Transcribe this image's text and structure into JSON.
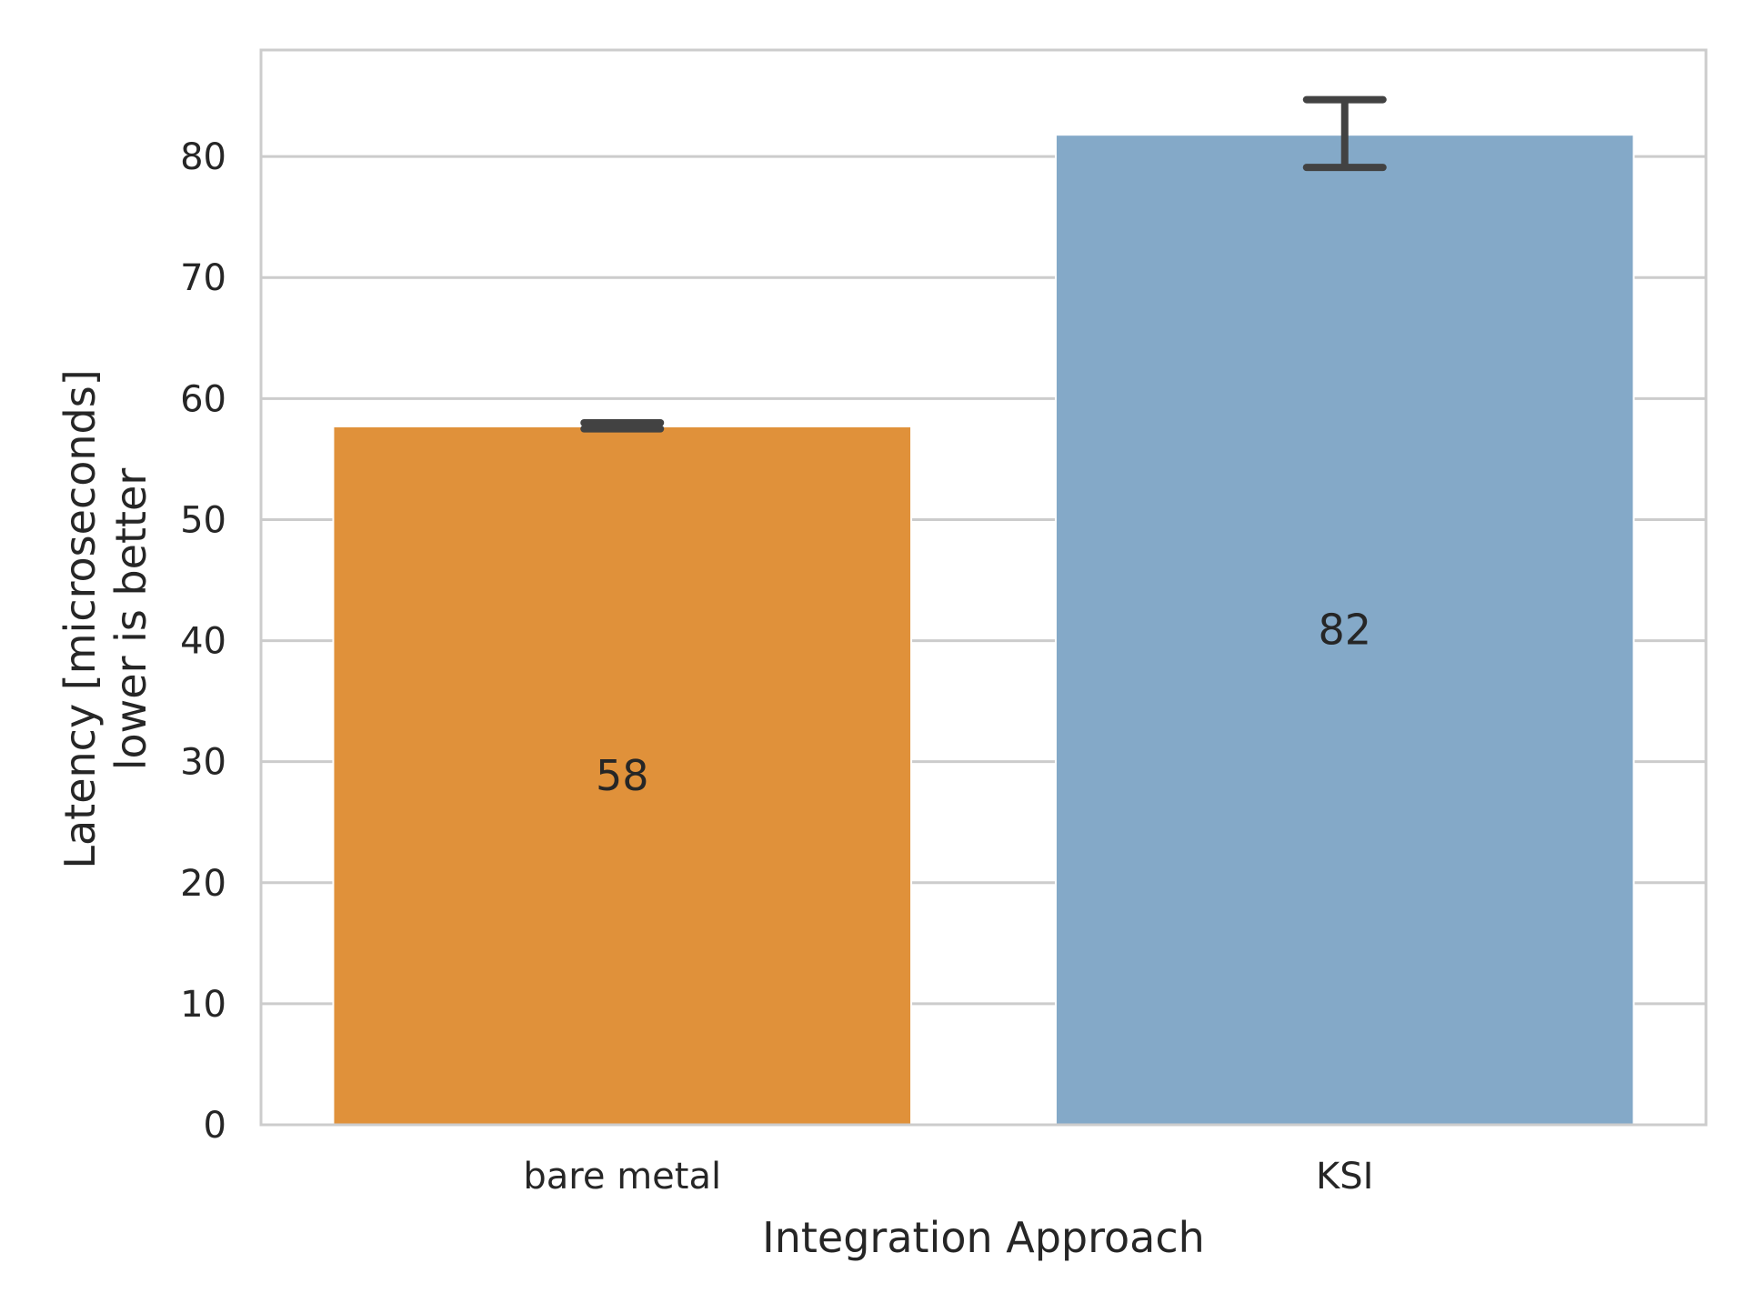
{
  "chart_data": {
    "type": "bar",
    "title": "",
    "xlabel": "Integration Approach",
    "ylabel_lines": [
      "Latency  [microseconds]",
      "lower is better"
    ],
    "categories": [
      "bare metal",
      "KSI"
    ],
    "values": [
      57.7,
      81.8
    ],
    "value_labels": [
      "58",
      "82"
    ],
    "error_bars": [
      {
        "low": 57.5,
        "high": 58.0
      },
      {
        "low": 79.1,
        "high": 84.7
      }
    ],
    "colors": [
      "#e0913a",
      "#84a9c8"
    ],
    "ylim": [
      0,
      88.8
    ],
    "yticks": [
      0,
      10,
      20,
      30,
      40,
      50,
      60,
      70,
      80
    ],
    "ytick_labels": [
      "0",
      "10",
      "20",
      "30",
      "40",
      "50",
      "60",
      "70",
      "80"
    ],
    "grid": "horizontal",
    "legend": "none"
  }
}
